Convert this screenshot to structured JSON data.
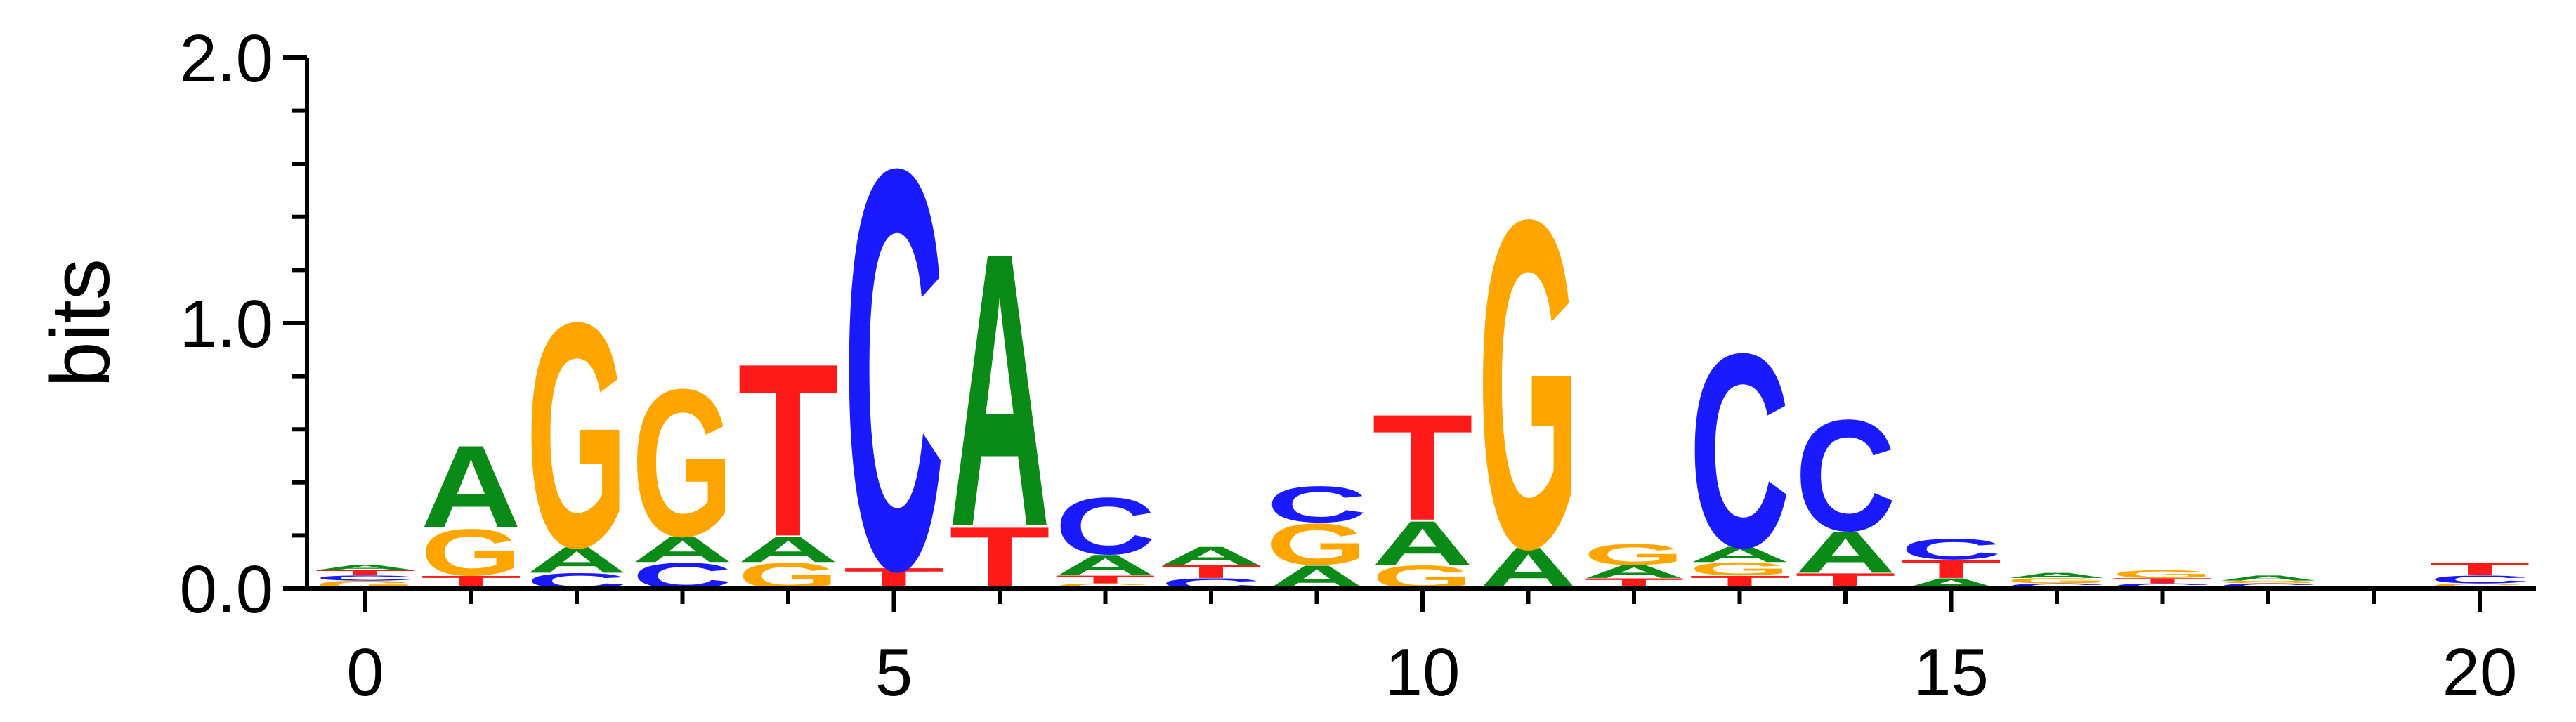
{
  "chart_data": {
    "type": "sequence-logo",
    "title": "",
    "xlabel": "",
    "ylabel": "bits",
    "xlim": [
      0,
      20
    ],
    "ylim": [
      0,
      2.0
    ],
    "x_ticks": [
      0,
      5,
      10,
      15,
      20
    ],
    "y_ticks": [
      "0.0",
      "1.0",
      "2.0"
    ],
    "grid": false,
    "colors": {
      "A": "#0a8a16",
      "C": "#1a1aff",
      "G": "#ffa500",
      "T": "#ff1a1a"
    },
    "columns": [
      {
        "position": 0,
        "stack": [
          [
            "G",
            0.03
          ],
          [
            "C",
            0.02
          ],
          [
            "T",
            0.02
          ],
          [
            "A",
            0.02
          ]
        ]
      },
      {
        "position": 1,
        "stack": [
          [
            "T",
            0.05
          ],
          [
            "G",
            0.18
          ],
          [
            "A",
            0.32
          ]
        ]
      },
      {
        "position": 2,
        "stack": [
          [
            "C",
            0.06
          ],
          [
            "A",
            0.1
          ],
          [
            "G",
            0.87
          ]
        ]
      },
      {
        "position": 3,
        "stack": [
          [
            "C",
            0.1
          ],
          [
            "A",
            0.1
          ],
          [
            "G",
            0.57
          ]
        ]
      },
      {
        "position": 4,
        "stack": [
          [
            "G",
            0.1
          ],
          [
            "A",
            0.1
          ],
          [
            "T",
            0.67
          ]
        ]
      },
      {
        "position": 5,
        "stack": [
          [
            "T",
            0.08
          ],
          [
            "C",
            1.55
          ]
        ]
      },
      {
        "position": 6,
        "stack": [
          [
            "T",
            0.24
          ],
          [
            "A",
            1.06
          ]
        ]
      },
      {
        "position": 7,
        "stack": [
          [
            "G",
            0.02
          ],
          [
            "T",
            0.03
          ],
          [
            "A",
            0.08
          ],
          [
            "C",
            0.22
          ]
        ]
      },
      {
        "position": 8,
        "stack": [
          [
            "C",
            0.04
          ],
          [
            "T",
            0.05
          ],
          [
            "A",
            0.07
          ]
        ]
      },
      {
        "position": 9,
        "stack": [
          [
            "A",
            0.09
          ],
          [
            "G",
            0.16
          ],
          [
            "C",
            0.14
          ]
        ]
      },
      {
        "position": 10,
        "stack": [
          [
            "G",
            0.09
          ],
          [
            "A",
            0.17
          ],
          [
            "T",
            0.41
          ]
        ]
      },
      {
        "position": 11,
        "stack": [
          [
            "A",
            0.16
          ],
          [
            "G",
            1.27
          ]
        ]
      },
      {
        "position": 12,
        "stack": [
          [
            "T",
            0.04
          ],
          [
            "A",
            0.05
          ],
          [
            "G",
            0.08
          ]
        ]
      },
      {
        "position": 13,
        "stack": [
          [
            "T",
            0.05
          ],
          [
            "G",
            0.05
          ],
          [
            "A",
            0.06
          ],
          [
            "C",
            0.75
          ]
        ]
      },
      {
        "position": 14,
        "stack": [
          [
            "T",
            0.06
          ],
          [
            "A",
            0.16
          ],
          [
            "C",
            0.43
          ]
        ]
      },
      {
        "position": 15,
        "stack": [
          [
            "A",
            0.04
          ],
          [
            "T",
            0.07
          ],
          [
            "C",
            0.08
          ]
        ]
      },
      {
        "position": 16,
        "stack": [
          [
            "C",
            0.02
          ],
          [
            "G",
            0.02
          ],
          [
            "A",
            0.02
          ]
        ]
      },
      {
        "position": 17,
        "stack": [
          [
            "C",
            0.02
          ],
          [
            "T",
            0.02
          ],
          [
            "G",
            0.03
          ]
        ]
      },
      {
        "position": 18,
        "stack": [
          [
            "C",
            0.02
          ],
          [
            "G",
            0.01
          ],
          [
            "A",
            0.02
          ]
        ]
      },
      {
        "position": 19,
        "stack": []
      },
      {
        "position": 20,
        "stack": [
          [
            "G",
            0.02
          ],
          [
            "C",
            0.03
          ],
          [
            "T",
            0.05
          ]
        ]
      }
    ]
  }
}
